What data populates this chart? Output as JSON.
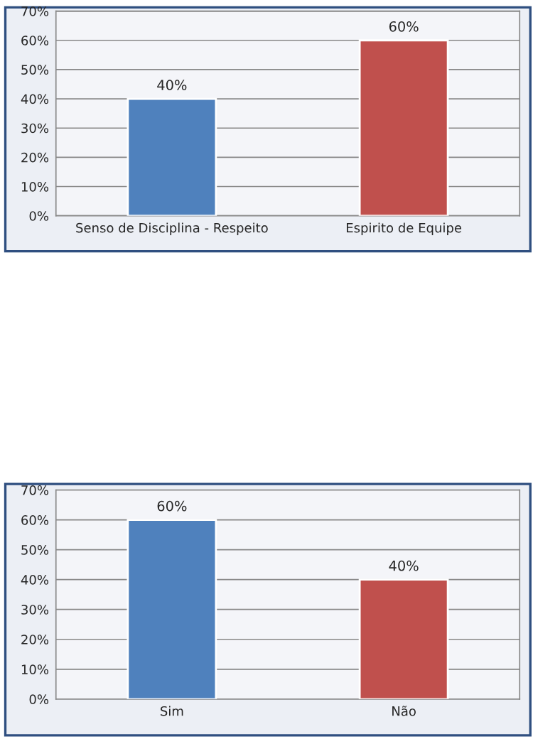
{
  "chart_data": [
    {
      "type": "bar",
      "categories": [
        "Senso de Disciplina - Respeito",
        "Espirito de Equipe"
      ],
      "values": [
        40,
        60
      ],
      "colors": [
        "#4f81bd",
        "#c0504d"
      ],
      "value_labels": [
        "40%",
        "60%"
      ],
      "ylim": [
        0,
        70
      ],
      "yticks": [
        {
          "value": 0,
          "label": "0%"
        },
        {
          "value": 10,
          "label": "10%"
        },
        {
          "value": 20,
          "label": "20%"
        },
        {
          "value": 30,
          "label": "30%"
        },
        {
          "value": 40,
          "label": "40%"
        },
        {
          "value": 50,
          "label": "50%"
        },
        {
          "value": 60,
          "label": "60%"
        },
        {
          "value": 70,
          "label": "70%"
        }
      ],
      "grid": "y"
    },
    {
      "type": "bar",
      "categories": [
        "Sim",
        "Não"
      ],
      "values": [
        60,
        40
      ],
      "colors": [
        "#4f81bd",
        "#c0504d"
      ],
      "value_labels": [
        "60%",
        "40%"
      ],
      "ylim": [
        0,
        70
      ],
      "yticks": [
        {
          "value": 0,
          "label": "0%"
        },
        {
          "value": 10,
          "label": "10%"
        },
        {
          "value": 20,
          "label": "20%"
        },
        {
          "value": 30,
          "label": "30%"
        },
        {
          "value": 40,
          "label": "40%"
        },
        {
          "value": 50,
          "label": "50%"
        },
        {
          "value": 60,
          "label": "60%"
        },
        {
          "value": 70,
          "label": "70%"
        }
      ],
      "grid": "y"
    }
  ]
}
